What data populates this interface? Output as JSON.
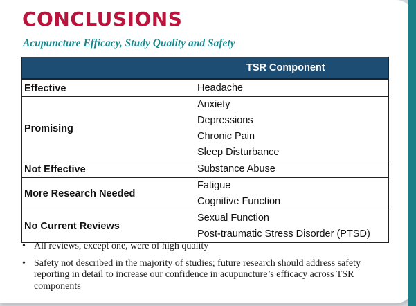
{
  "title": "CONCLUSIONS",
  "subtitle": "Acupuncture Efficacy, Study Quality and Safety",
  "table": {
    "header": "TSR Component",
    "rows": [
      {
        "category": "Effective",
        "components": [
          "Headache"
        ]
      },
      {
        "category": "Promising",
        "components": [
          "Anxiety",
          "Depressions",
          "Chronic Pain",
          "Sleep Disturbance"
        ]
      },
      {
        "category": "Not Effective",
        "components": [
          "Substance Abuse"
        ]
      },
      {
        "category": "More Research Needed",
        "components": [
          "Fatigue",
          "Cognitive Function"
        ]
      },
      {
        "category": "No Current Reviews",
        "components": [
          "Sexual Function",
          "Post-traumatic Stress Disorder (PTSD)"
        ]
      }
    ]
  },
  "notes": [
    "All reviews, except one, were of high quality",
    "Safety not described in the majority of studies; future research should address safety reporting in detail to increase our confidence in acupuncture’s efficacy across TSR components"
  ],
  "colors": {
    "title": "#b8143c",
    "subtitle": "#16888c",
    "header_bg": "#1e4d74",
    "sidebar": "#1a7f86"
  }
}
